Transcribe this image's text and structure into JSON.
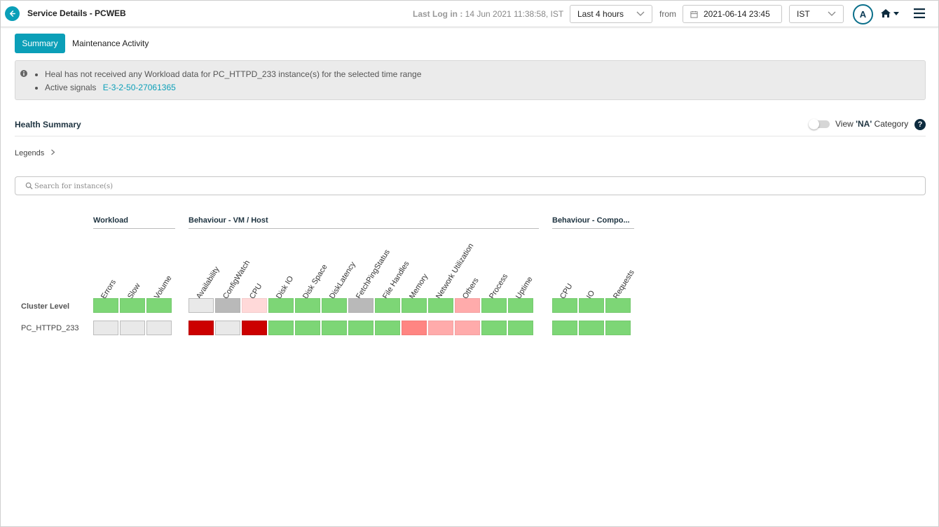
{
  "header": {
    "title": "Service Details - PCWEB",
    "last_log_label": "Last Log in :",
    "last_log_value": "14 Jun 2021 11:38:58, IST",
    "range_select": "Last 4 hours",
    "from_label": "from",
    "date_value": "2021-06-14 23:45",
    "timezone_select": "IST",
    "avatar_initial": "A"
  },
  "tabs": {
    "summary": "Summary",
    "maintenance": "Maintenance Activity"
  },
  "banner": {
    "message_1": "Heal has not received any Workload data for PC_HTTPD_233 instance(s) for the selected time range",
    "signals_label": "Active signals",
    "signals_link": "E-3-2-50-27061365"
  },
  "health": {
    "title": "Health Summary",
    "na_prefix": "View ",
    "na_bold": "'NA'",
    "na_suffix": " Category",
    "help": "?",
    "legends": "Legends",
    "search_placeholder": "Search for instance(s)"
  },
  "grid": {
    "groups": [
      "Workload",
      "Behaviour - VM / Host",
      "Behaviour - Compo..."
    ],
    "columns": [
      {
        "label": "Errors",
        "group": 0
      },
      {
        "label": "Slow",
        "group": 0
      },
      {
        "label": "Volume",
        "group": 0
      },
      {
        "label": "Availability",
        "group": 1
      },
      {
        "label": "ConfigWatch",
        "group": 1
      },
      {
        "label": "CPU",
        "group": 1
      },
      {
        "label": "Disk IO",
        "group": 1
      },
      {
        "label": "Disk Space",
        "group": 1
      },
      {
        "label": "DiskLatency",
        "group": 1
      },
      {
        "label": "FetchPingStatus",
        "group": 1
      },
      {
        "label": "File Handles",
        "group": 1
      },
      {
        "label": "Memory",
        "group": 1
      },
      {
        "label": "Network Utilization",
        "group": 1
      },
      {
        "label": "Others",
        "group": 1
      },
      {
        "label": "Process",
        "group": 1
      },
      {
        "label": "Uptime",
        "group": 1
      },
      {
        "label": "CPU",
        "group": 2
      },
      {
        "label": "IO",
        "group": 2
      },
      {
        "label": "Requests",
        "group": 2
      }
    ],
    "rows": [
      {
        "label": "Cluster Level",
        "cells": [
          "green",
          "green",
          "green",
          "empty",
          "gray",
          "pale",
          "green",
          "green",
          "green",
          "gray",
          "green",
          "green",
          "green",
          "pink",
          "green",
          "green",
          "green",
          "green",
          "green"
        ]
      },
      {
        "label": "PC_HTTPD_233",
        "cells": [
          "empty",
          "empty",
          "empty",
          "red",
          "empty",
          "red",
          "green",
          "green",
          "green",
          "green",
          "green",
          "salmon",
          "pink",
          "pink",
          "green",
          "green",
          "green",
          "green",
          "green"
        ]
      }
    ]
  },
  "colors": {
    "accent": "#0b9fb8",
    "green": "#7dd676",
    "red": "#cc0000",
    "salmon": "#ff8582",
    "pink": "#ffabab",
    "pale": "#ffd9d9",
    "gray": "#b9b9b9",
    "empty": "#e9e9e9"
  }
}
